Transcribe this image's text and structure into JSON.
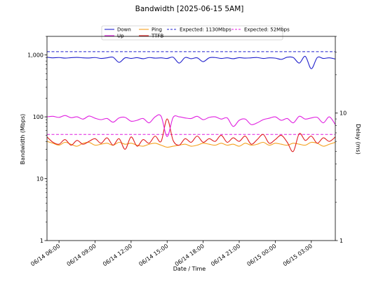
{
  "chart_data": {
    "type": "line",
    "title": "Bandwidth [2025-06-15 5AM]",
    "xlabel": "Date / Time",
    "ylabel_left": "Bandwidth (Mbps)",
    "ylabel_right": "Delay (ms)",
    "y_left_scale": "log",
    "y_left_range": [
      1,
      2000
    ],
    "y_left_ticks": [
      {
        "value": 1,
        "label": "1"
      },
      {
        "value": 10,
        "label": "10"
      },
      {
        "value": 100,
        "label": "100"
      },
      {
        "value": 1000,
        "label": "1,000"
      }
    ],
    "y_right_scale": "log",
    "y_right_range": [
      1,
      40
    ],
    "y_right_ticks": [
      {
        "value": 1,
        "label": "1"
      },
      {
        "value": 10,
        "label": "10"
      }
    ],
    "x_range": [
      "2025-06-14T05:00",
      "2025-06-15T05:00"
    ],
    "x_ticks": [
      {
        "value": "2025-06-14T06:00",
        "label": "06/14 06:00"
      },
      {
        "value": "2025-06-14T09:00",
        "label": "06/14 09:00"
      },
      {
        "value": "2025-06-14T12:00",
        "label": "06/14 12:00"
      },
      {
        "value": "2025-06-14T15:00",
        "label": "06/14 15:00"
      },
      {
        "value": "2025-06-14T18:00",
        "label": "06/14 18:00"
      },
      {
        "value": "2025-06-14T21:00",
        "label": "06/14 21:00"
      },
      {
        "value": "2025-06-15T00:00",
        "label": "06/15 00:00"
      },
      {
        "value": "2025-06-15T03:00",
        "label": "06/15 03:00"
      }
    ],
    "grid": false,
    "legend_position": "top-center",
    "x": [
      "2025-06-14T05:00",
      "2025-06-14T05:30",
      "2025-06-14T06:00",
      "2025-06-14T06:30",
      "2025-06-14T07:00",
      "2025-06-14T07:30",
      "2025-06-14T08:00",
      "2025-06-14T08:30",
      "2025-06-14T09:00",
      "2025-06-14T09:30",
      "2025-06-14T10:00",
      "2025-06-14T10:30",
      "2025-06-14T11:00",
      "2025-06-14T11:30",
      "2025-06-14T12:00",
      "2025-06-14T12:30",
      "2025-06-14T13:00",
      "2025-06-14T13:30",
      "2025-06-14T14:00",
      "2025-06-14T14:30",
      "2025-06-14T15:00",
      "2025-06-14T15:30",
      "2025-06-14T16:00",
      "2025-06-14T16:30",
      "2025-06-14T17:00",
      "2025-06-14T17:30",
      "2025-06-14T18:00",
      "2025-06-14T18:30",
      "2025-06-14T19:00",
      "2025-06-14T19:30",
      "2025-06-14T20:00",
      "2025-06-14T20:30",
      "2025-06-14T21:00",
      "2025-06-14T21:30",
      "2025-06-14T22:00",
      "2025-06-14T22:30",
      "2025-06-14T23:00",
      "2025-06-14T23:30",
      "2025-06-15T00:00",
      "2025-06-15T00:30",
      "2025-06-15T01:00",
      "2025-06-15T01:30",
      "2025-06-15T02:00",
      "2025-06-15T02:30",
      "2025-06-15T03:00",
      "2025-06-15T03:30",
      "2025-06-15T04:00",
      "2025-06-15T04:30",
      "2025-06-15T05:00"
    ],
    "series": [
      {
        "name": "Down",
        "axis": "left",
        "color": "#1f1fcc",
        "style": "solid",
        "values": [
          920,
          900,
          910,
          890,
          905,
          915,
          900,
          895,
          910,
          880,
          900,
          920,
          760,
          900,
          880,
          905,
          870,
          910,
          890,
          900,
          880,
          920,
          740,
          910,
          870,
          900,
          780,
          900,
          910,
          880,
          900,
          870,
          905,
          890,
          900,
          910,
          880,
          900,
          890,
          850,
          920,
          910,
          740,
          950,
          600,
          910,
          880,
          900,
          860
        ]
      },
      {
        "name": "Up",
        "axis": "left",
        "color": "#e01fe0",
        "style": "solid",
        "values": [
          100,
          102,
          98,
          105,
          97,
          100,
          92,
          103,
          95,
          90,
          94,
          82,
          96,
          98,
          85,
          88,
          94,
          80,
          100,
          102,
          48,
          98,
          100,
          96,
          94,
          102,
          90,
          98,
          100,
          92,
          96,
          70,
          88,
          92,
          75,
          80,
          90,
          95,
          100,
          88,
          94,
          80,
          102,
          92,
          96,
          98,
          80,
          100,
          75
        ]
      },
      {
        "name": "Ping",
        "axis": "right",
        "color": "#f5a01e",
        "style": "solid",
        "values": [
          6.0,
          5.8,
          5.6,
          5.9,
          5.7,
          5.5,
          5.8,
          5.9,
          5.6,
          5.7,
          5.8,
          5.6,
          5.9,
          5.7,
          5.8,
          5.6,
          5.5,
          5.7,
          5.8,
          5.6,
          5.4,
          5.5,
          5.6,
          5.7,
          5.5,
          5.6,
          5.8,
          5.7,
          5.6,
          5.8,
          5.6,
          5.7,
          5.5,
          5.8,
          5.6,
          5.7,
          5.9,
          5.6,
          5.8,
          5.7,
          5.6,
          5.8,
          5.7,
          5.6,
          5.9,
          5.8,
          5.5,
          5.7,
          5.9
        ]
      },
      {
        "name": "TTFB",
        "axis": "right",
        "color": "#e01f1f",
        "style": "solid",
        "values": [
          6.5,
          5.9,
          5.7,
          6.2,
          5.6,
          6.1,
          5.7,
          6.0,
          6.3,
          5.8,
          6.4,
          5.6,
          6.3,
          5.2,
          6.5,
          5.5,
          6.2,
          5.8,
          6.6,
          6.0,
          9.0,
          6.1,
          5.6,
          6.3,
          5.9,
          6.6,
          5.9,
          6.3,
          6.0,
          6.7,
          5.9,
          6.4,
          6.0,
          6.6,
          5.7,
          6.2,
          6.8,
          5.8,
          6.2,
          6.7,
          5.9,
          5.0,
          6.9,
          6.1,
          6.6,
          5.8,
          6.4,
          6.0,
          6.5
        ]
      },
      {
        "name": "Expected: 1130Mbps",
        "axis": "left",
        "color": "#1f1fcc",
        "style": "dashed",
        "constant": 1130
      },
      {
        "name": "Expected: 52Mbps",
        "axis": "left",
        "color": "#e01fe0",
        "style": "dashed",
        "constant": 52
      }
    ],
    "colors": {
      "down": "#1f1fcc",
      "up": "#e01fe0",
      "ping": "#f5a01e",
      "ttfb": "#e01f1f"
    }
  }
}
